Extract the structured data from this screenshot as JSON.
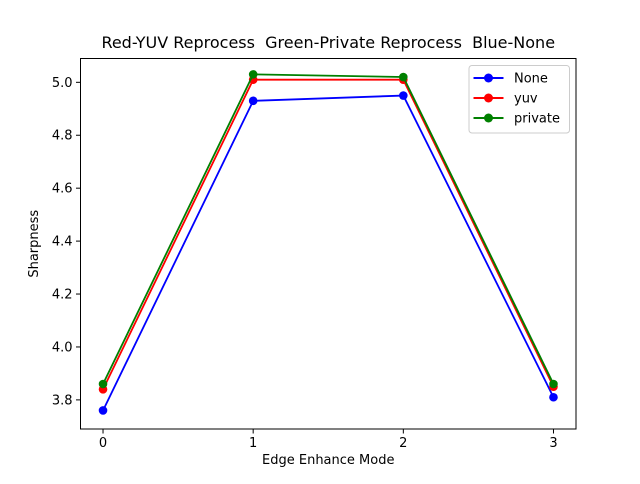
{
  "figure": {
    "background": "#ffffff",
    "frame_color": "#000000",
    "legend_border_color": "#cccccc"
  },
  "chart_data": {
    "type": "line",
    "title": "Red-YUV Reprocess  Green-Private Reprocess  Blue-None",
    "xlabel": "Edge Enhance Mode",
    "ylabel": "Sharpness",
    "x": [
      0,
      1,
      2,
      3
    ],
    "series": [
      {
        "name": "None",
        "color": "#0000ff",
        "marker": "circle",
        "values": [
          3.76,
          4.93,
          4.95,
          3.81
        ]
      },
      {
        "name": "yuv",
        "color": "#ff0000",
        "marker": "circle",
        "values": [
          3.84,
          5.01,
          5.01,
          3.85
        ]
      },
      {
        "name": "private",
        "color": "#008000",
        "marker": "circle",
        "values": [
          3.86,
          5.03,
          5.02,
          3.86
        ]
      }
    ],
    "xticks": [
      0,
      1,
      2,
      3
    ],
    "yticks": [
      3.8,
      4.0,
      4.2,
      4.4,
      4.6,
      4.8,
      5.0
    ],
    "xlim": [
      -0.15,
      3.15
    ],
    "ylim": [
      3.69,
      5.09
    ],
    "grid": false,
    "legend_position": "upper right",
    "legend_labels": [
      "None",
      "yuv",
      "private"
    ]
  }
}
